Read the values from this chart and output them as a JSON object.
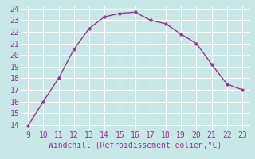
{
  "x": [
    9,
    10,
    11,
    12,
    13,
    14,
    15,
    16,
    17,
    18,
    19,
    20,
    21,
    22,
    23
  ],
  "y": [
    13.9,
    16.0,
    18.0,
    20.5,
    22.3,
    23.3,
    23.6,
    23.7,
    23.0,
    22.7,
    21.8,
    21.0,
    19.2,
    17.5,
    17.0
  ],
  "xlabel": "Windchill (Refroidissement éolien,°C)",
  "xlim": [
    8.5,
    23.5
  ],
  "ylim": [
    13.5,
    24.2
  ],
  "yticks": [
    14,
    15,
    16,
    17,
    18,
    19,
    20,
    21,
    22,
    23,
    24
  ],
  "xticks": [
    9,
    10,
    11,
    12,
    13,
    14,
    15,
    16,
    17,
    18,
    19,
    20,
    21,
    22,
    23
  ],
  "line_color": "#993399",
  "marker_color": "#993399",
  "bg_color": "#c8e8e8",
  "grid_color": "#ffffff",
  "label_color": "#993399",
  "xlabel_color": "#993399",
  "tick_fontsize": 7,
  "xlabel_fontsize": 7
}
